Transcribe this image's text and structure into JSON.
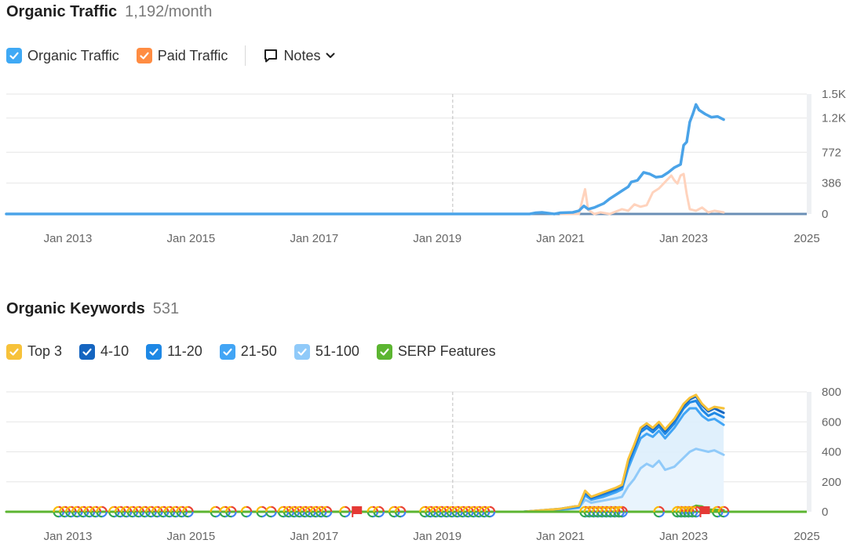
{
  "traffic": {
    "title": "Organic Traffic",
    "metric": "1,192/month",
    "legend": [
      {
        "label": "Organic Traffic",
        "color": "#3fa9f5"
      },
      {
        "label": "Paid Traffic",
        "color": "#ff8c42"
      }
    ],
    "notes_label": "Notes"
  },
  "keywords": {
    "title": "Organic Keywords",
    "metric": "531",
    "legend": [
      {
        "label": "Top 3",
        "color": "#f7c23a"
      },
      {
        "label": "4-10",
        "color": "#1565c0"
      },
      {
        "label": "11-20",
        "color": "#1e88e5"
      },
      {
        "label": "21-50",
        "color": "#42a5f5"
      },
      {
        "label": "51-100",
        "color": "#90caf9"
      },
      {
        "label": "SERP Features",
        "color": "#5cb531"
      }
    ]
  },
  "chart_data": [
    {
      "type": "line",
      "title": "Organic Traffic",
      "xlim": [
        2012,
        2025
      ],
      "xticks": [
        {
          "x": 2013,
          "label": "Jan 2013"
        },
        {
          "x": 2015,
          "label": "Jan 2015"
        },
        {
          "x": 2017,
          "label": "Jan 2017"
        },
        {
          "x": 2019,
          "label": "Jan 2019"
        },
        {
          "x": 2021,
          "label": "Jan 2021"
        },
        {
          "x": 2023,
          "label": "Jan 2023"
        },
        {
          "x": 2025,
          "label": "2025"
        }
      ],
      "ylim": [
        0,
        1500
      ],
      "yticks": [
        {
          "y": 0,
          "label": "0"
        },
        {
          "y": 386,
          "label": "386"
        },
        {
          "y": 772,
          "label": "772"
        },
        {
          "y": 1200,
          "label": "1.2K"
        },
        {
          "y": 1500,
          "label": "1.5K"
        }
      ],
      "grid": true,
      "vline_x": 2019.25,
      "series": [
        {
          "name": "Organic Traffic",
          "color": "#4aa3e8",
          "points": [
            [
              2012.0,
              0
            ],
            [
              2020.5,
              0
            ],
            [
              2020.6,
              15
            ],
            [
              2020.7,
              20
            ],
            [
              2020.8,
              10
            ],
            [
              2020.9,
              0
            ],
            [
              2021.0,
              15
            ],
            [
              2021.2,
              20
            ],
            [
              2021.3,
              40
            ],
            [
              2021.38,
              100
            ],
            [
              2021.45,
              60
            ],
            [
              2021.55,
              80
            ],
            [
              2021.7,
              130
            ],
            [
              2021.8,
              190
            ],
            [
              2021.9,
              240
            ],
            [
              2022.0,
              290
            ],
            [
              2022.1,
              340
            ],
            [
              2022.15,
              400
            ],
            [
              2022.25,
              420
            ],
            [
              2022.35,
              520
            ],
            [
              2022.45,
              500
            ],
            [
              2022.55,
              460
            ],
            [
              2022.65,
              470
            ],
            [
              2022.75,
              520
            ],
            [
              2022.85,
              580
            ],
            [
              2022.95,
              620
            ],
            [
              2023.0,
              860
            ],
            [
              2023.05,
              900
            ],
            [
              2023.1,
              1150
            ],
            [
              2023.15,
              1250
            ],
            [
              2023.2,
              1370
            ],
            [
              2023.25,
              1300
            ],
            [
              2023.35,
              1250
            ],
            [
              2023.45,
              1210
            ],
            [
              2023.55,
              1220
            ],
            [
              2023.65,
              1180
            ]
          ]
        },
        {
          "name": "Paid Traffic",
          "color": "#ffd3bd",
          "points": [
            [
              2021.0,
              0
            ],
            [
              2021.3,
              0
            ],
            [
              2021.4,
              310
            ],
            [
              2021.45,
              50
            ],
            [
              2021.55,
              0
            ],
            [
              2021.65,
              20
            ],
            [
              2021.8,
              0
            ],
            [
              2022.0,
              60
            ],
            [
              2022.1,
              40
            ],
            [
              2022.2,
              120
            ],
            [
              2022.3,
              90
            ],
            [
              2022.4,
              110
            ],
            [
              2022.5,
              270
            ],
            [
              2022.6,
              320
            ],
            [
              2022.7,
              400
            ],
            [
              2022.8,
              480
            ],
            [
              2022.85,
              420
            ],
            [
              2022.9,
              380
            ],
            [
              2022.95,
              480
            ],
            [
              2023.0,
              500
            ],
            [
              2023.05,
              250
            ],
            [
              2023.1,
              60
            ],
            [
              2023.2,
              40
            ],
            [
              2023.3,
              80
            ],
            [
              2023.4,
              20
            ],
            [
              2023.5,
              40
            ],
            [
              2023.65,
              20
            ]
          ]
        }
      ]
    },
    {
      "type": "area",
      "title": "Organic Keywords",
      "xlim": [
        2012,
        2025
      ],
      "xticks": [
        {
          "x": 2013,
          "label": "Jan 2013"
        },
        {
          "x": 2015,
          "label": "Jan 2015"
        },
        {
          "x": 2017,
          "label": "Jan 2017"
        },
        {
          "x": 2019,
          "label": "Jan 2019"
        },
        {
          "x": 2021,
          "label": "Jan 2021"
        },
        {
          "x": 2023,
          "label": "Jan 2023"
        },
        {
          "x": 2025,
          "label": "2025"
        }
      ],
      "ylim": [
        0,
        800
      ],
      "yticks": [
        {
          "y": 0,
          "label": "0"
        },
        {
          "y": 200,
          "label": "200"
        },
        {
          "y": 400,
          "label": "400"
        },
        {
          "y": 600,
          "label": "600"
        },
        {
          "y": 800,
          "label": "800"
        }
      ],
      "grid": true,
      "vline_x": 2019.25,
      "series": [
        {
          "name": "Top 3",
          "color": "#f7c23a",
          "points": [
            [
              2020.4,
              0
            ],
            [
              2021.0,
              20
            ],
            [
              2021.3,
              40
            ],
            [
              2021.4,
              140
            ],
            [
              2021.5,
              100
            ],
            [
              2021.7,
              130
            ],
            [
              2021.9,
              160
            ],
            [
              2022.0,
              180
            ],
            [
              2022.1,
              350
            ],
            [
              2022.2,
              450
            ],
            [
              2022.3,
              560
            ],
            [
              2022.4,
              590
            ],
            [
              2022.5,
              560
            ],
            [
              2022.6,
              600
            ],
            [
              2022.7,
              550
            ],
            [
              2022.85,
              620
            ],
            [
              2023.0,
              720
            ],
            [
              2023.1,
              760
            ],
            [
              2023.2,
              780
            ],
            [
              2023.3,
              720
            ],
            [
              2023.4,
              680
            ],
            [
              2023.5,
              700
            ],
            [
              2023.65,
              690
            ]
          ]
        },
        {
          "name": "4-10",
          "color": "#1565c0",
          "points": [
            [
              2020.4,
              0
            ],
            [
              2021.0,
              20
            ],
            [
              2021.3,
              40
            ],
            [
              2021.4,
              135
            ],
            [
              2021.5,
              95
            ],
            [
              2021.7,
              125
            ],
            [
              2021.9,
              155
            ],
            [
              2022.0,
              175
            ],
            [
              2022.1,
              340
            ],
            [
              2022.2,
              440
            ],
            [
              2022.3,
              550
            ],
            [
              2022.4,
              580
            ],
            [
              2022.5,
              550
            ],
            [
              2022.6,
              590
            ],
            [
              2022.7,
              540
            ],
            [
              2022.85,
              610
            ],
            [
              2023.0,
              710
            ],
            [
              2023.1,
              750
            ],
            [
              2023.2,
              770
            ],
            [
              2023.3,
              710
            ],
            [
              2023.4,
              670
            ],
            [
              2023.5,
              690
            ],
            [
              2023.65,
              660
            ]
          ]
        },
        {
          "name": "11-20",
          "color": "#1e88e5",
          "points": [
            [
              2020.4,
              0
            ],
            [
              2021.0,
              18
            ],
            [
              2021.3,
              35
            ],
            [
              2021.4,
              125
            ],
            [
              2021.5,
              90
            ],
            [
              2021.7,
              115
            ],
            [
              2021.9,
              145
            ],
            [
              2022.0,
              165
            ],
            [
              2022.1,
              320
            ],
            [
              2022.2,
              420
            ],
            [
              2022.3,
              530
            ],
            [
              2022.4,
              560
            ],
            [
              2022.5,
              530
            ],
            [
              2022.6,
              570
            ],
            [
              2022.7,
              520
            ],
            [
              2022.85,
              590
            ],
            [
              2023.0,
              690
            ],
            [
              2023.1,
              730
            ],
            [
              2023.2,
              740
            ],
            [
              2023.3,
              680
            ],
            [
              2023.4,
              640
            ],
            [
              2023.5,
              660
            ],
            [
              2023.65,
              630
            ]
          ]
        },
        {
          "name": "21-50",
          "color": "#42a5f5",
          "points": [
            [
              2020.4,
              0
            ],
            [
              2021.0,
              15
            ],
            [
              2021.3,
              30
            ],
            [
              2021.4,
              110
            ],
            [
              2021.5,
              80
            ],
            [
              2021.7,
              100
            ],
            [
              2021.9,
              130
            ],
            [
              2022.0,
              150
            ],
            [
              2022.1,
              290
            ],
            [
              2022.2,
              390
            ],
            [
              2022.3,
              490
            ],
            [
              2022.4,
              520
            ],
            [
              2022.5,
              500
            ],
            [
              2022.6,
              540
            ],
            [
              2022.7,
              490
            ],
            [
              2022.85,
              560
            ],
            [
              2023.0,
              650
            ],
            [
              2023.1,
              690
            ],
            [
              2023.2,
              690
            ],
            [
              2023.3,
              640
            ],
            [
              2023.4,
              610
            ],
            [
              2023.5,
              620
            ],
            [
              2023.65,
              580
            ]
          ]
        },
        {
          "name": "51-100",
          "color": "#90caf9",
          "points": [
            [
              2020.4,
              0
            ],
            [
              2021.0,
              10
            ],
            [
              2021.3,
              25
            ],
            [
              2021.4,
              80
            ],
            [
              2021.5,
              60
            ],
            [
              2021.7,
              75
            ],
            [
              2021.9,
              90
            ],
            [
              2022.0,
              100
            ],
            [
              2022.1,
              170
            ],
            [
              2022.2,
              220
            ],
            [
              2022.3,
              290
            ],
            [
              2022.4,
              320
            ],
            [
              2022.5,
              300
            ],
            [
              2022.6,
              340
            ],
            [
              2022.7,
              280
            ],
            [
              2022.85,
              300
            ],
            [
              2023.0,
              360
            ],
            [
              2023.1,
              400
            ],
            [
              2023.2,
              420
            ],
            [
              2023.3,
              410
            ],
            [
              2023.4,
              400
            ],
            [
              2023.5,
              410
            ],
            [
              2023.65,
              380
            ]
          ]
        },
        {
          "name": "SERP Features",
          "color": "#5cb531",
          "points": [
            [
              2012.0,
              0
            ],
            [
              2023.0,
              0
            ],
            [
              2023.1,
              20
            ],
            [
              2023.2,
              40
            ],
            [
              2023.3,
              35
            ],
            [
              2023.4,
              15
            ],
            [
              2023.65,
              10
            ]
          ]
        }
      ]
    }
  ]
}
